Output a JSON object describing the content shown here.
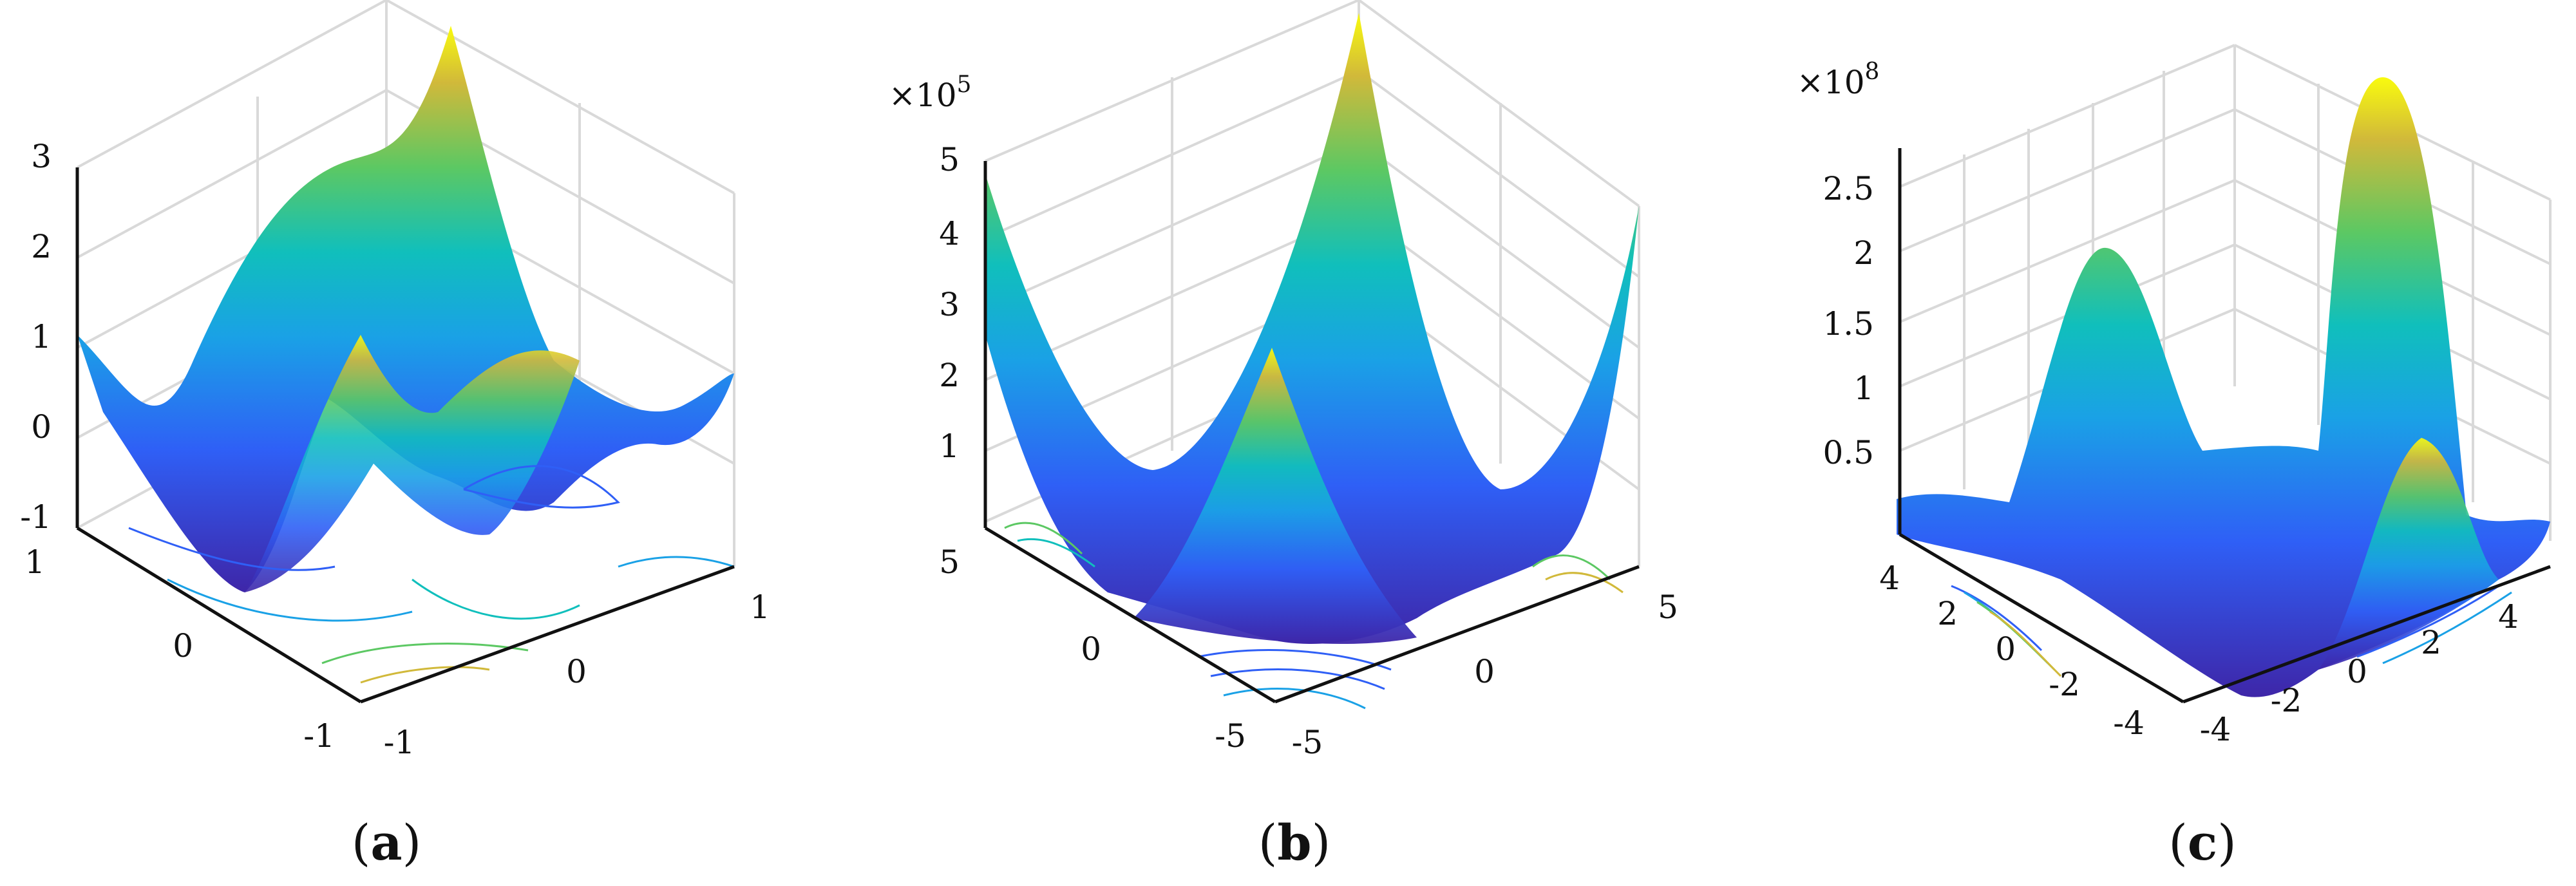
{
  "chart_data": [
    {
      "panel": "a",
      "caption": "(a)",
      "type": "surface",
      "with_contour": true,
      "z_ticks": [
        "-1",
        "0",
        "1",
        "2",
        "3"
      ],
      "y_ticks": [
        "1",
        "0",
        "-1"
      ],
      "x_ticks": [
        "-1",
        "0",
        "1"
      ],
      "z_range": [
        -1,
        3
      ],
      "xy_range": [
        -1,
        1
      ],
      "grid": true,
      "colormap": [
        "#3e26a8",
        "#2f5ff6",
        "#1aa1e6",
        "#10bfbc",
        "#5cc863",
        "#d1b93a",
        "#f9fb0e"
      ]
    },
    {
      "panel": "b",
      "caption": "(b)",
      "type": "surface",
      "with_contour": true,
      "z_multiplier": "×10",
      "z_exponent": "5",
      "z_ticks": [
        "1",
        "2",
        "3",
        "4",
        "5"
      ],
      "y_ticks": [
        "5",
        "0",
        "-5"
      ],
      "x_ticks": [
        "-5",
        "0",
        "5"
      ],
      "z_range": [
        0,
        5
      ],
      "xy_range": [
        -5,
        5
      ],
      "grid": true,
      "colormap": [
        "#3e26a8",
        "#2f5ff6",
        "#1aa1e6",
        "#10bfbc",
        "#5cc863",
        "#d1b93a",
        "#f9fb0e"
      ]
    },
    {
      "panel": "c",
      "caption": "(c)",
      "type": "surface",
      "with_contour": true,
      "z_multiplier": "×10",
      "z_exponent": "8",
      "z_ticks": [
        "0.5",
        "1",
        "1.5",
        "2",
        "2.5"
      ],
      "y_ticks": [
        "4",
        "2",
        "0",
        "-2",
        "-4"
      ],
      "x_ticks": [
        "-4",
        "-2",
        "0",
        "2",
        "4"
      ],
      "z_range": [
        0,
        2.8
      ],
      "xy_range": [
        -5,
        5
      ],
      "grid": true,
      "colormap": [
        "#3e26a8",
        "#2f5ff6",
        "#1aa1e6",
        "#10bfbc",
        "#5cc863",
        "#d1b93a",
        "#f9fb0e"
      ]
    }
  ]
}
